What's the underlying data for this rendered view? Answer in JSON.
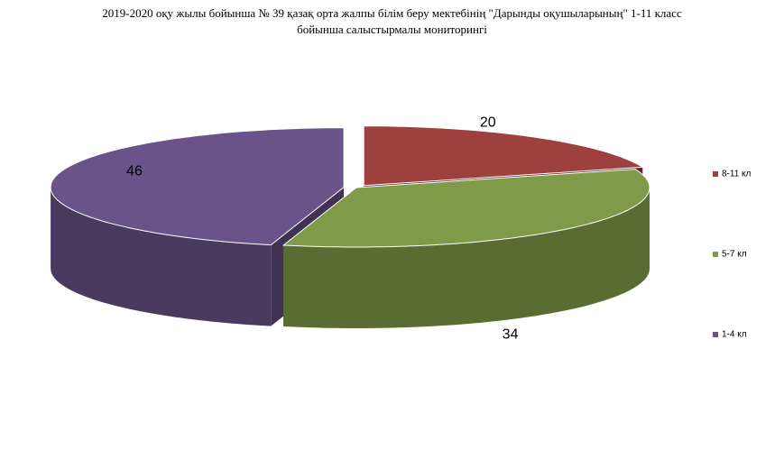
{
  "chart_data": {
    "type": "pie3d",
    "title": "2019-2020 оқу жылы бойынша № 39 қазақ орта жалпы білім беру мектебінің \"Дарынды оқушыларының\" 1-11 класс  бойынша салыстырмалы мониторингі",
    "categories": [
      "8-11 кл",
      "5-7 кл",
      "1-4 кл"
    ],
    "values": [
      20,
      34,
      46
    ],
    "colors": [
      "#9e413e",
      "#7f9a48",
      "#6a5389"
    ]
  }
}
